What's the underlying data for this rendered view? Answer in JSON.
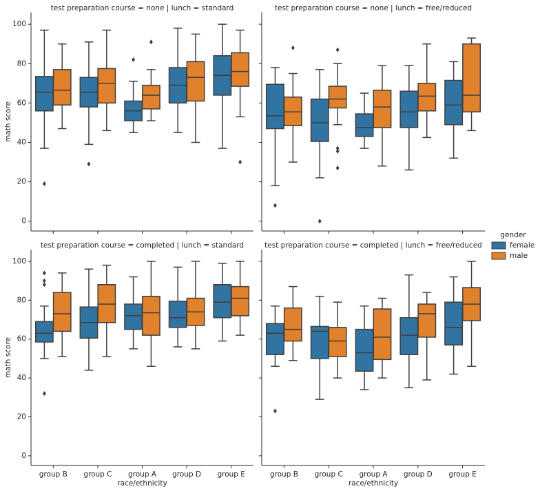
{
  "legend": {
    "title": "gender"
  },
  "chart_data": [
    {
      "type": "box",
      "title": "test preparation course = none | lunch = standard",
      "ylabel": "math score",
      "ylim": [
        -5,
        106
      ],
      "yticks": [
        0,
        20,
        40,
        60,
        80,
        100
      ],
      "series": [
        {
          "name": "female",
          "color": "#3274a1",
          "boxes": [
            {
              "whislo": 37,
              "q1": 56,
              "med": 65.5,
              "q3": 73.5,
              "whishi": 97,
              "fliers": [
                19
              ]
            },
            {
              "whislo": 39,
              "q1": 58,
              "med": 65.5,
              "q3": 73,
              "whishi": 91,
              "fliers": [
                29
              ]
            },
            {
              "whislo": 45,
              "q1": 51,
              "med": 56,
              "q3": 61,
              "whishi": 71,
              "fliers": [
                82
              ]
            },
            {
              "whislo": 45,
              "q1": 60,
              "med": 69,
              "q3": 78,
              "whishi": 98,
              "fliers": []
            },
            {
              "whislo": 37,
              "q1": 64,
              "med": 74,
              "q3": 84,
              "whishi": 100,
              "fliers": []
            }
          ]
        },
        {
          "name": "male",
          "color": "#e1812c",
          "boxes": [
            {
              "whislo": 47,
              "q1": 59,
              "med": 66.5,
              "q3": 77,
              "whishi": 90,
              "fliers": []
            },
            {
              "whislo": 46,
              "q1": 60,
              "med": 70,
              "q3": 77.5,
              "whishi": 97,
              "fliers": []
            },
            {
              "whislo": 51,
              "q1": 57,
              "med": 64,
              "q3": 69,
              "whishi": 77,
              "fliers": [
                91
              ]
            },
            {
              "whislo": 40,
              "q1": 61,
              "med": 73,
              "q3": 81,
              "whishi": 95,
              "fliers": []
            },
            {
              "whislo": 53,
              "q1": 68.5,
              "med": 76,
              "q3": 85.5,
              "whishi": 97,
              "fliers": [
                30
              ]
            }
          ]
        }
      ]
    },
    {
      "type": "box",
      "title": "test preparation course = none | lunch = free/reduced",
      "ylim": [
        -5,
        106
      ],
      "yticks": [
        0,
        20,
        40,
        60,
        80,
        100
      ],
      "series": [
        {
          "name": "female",
          "color": "#3274a1",
          "boxes": [
            {
              "whislo": 18,
              "q1": 47,
              "med": 53.5,
              "q3": 69.5,
              "whishi": 78,
              "fliers": [
                8
              ]
            },
            {
              "whislo": 22,
              "q1": 40.5,
              "med": 50,
              "q3": 62,
              "whishi": 77,
              "fliers": [
                0
              ]
            },
            {
              "whislo": 37,
              "q1": 43,
              "med": 47.5,
              "q3": 54.5,
              "whishi": 65,
              "fliers": []
            },
            {
              "whislo": 26,
              "q1": 47.5,
              "med": 55.5,
              "q3": 66,
              "whishi": 79,
              "fliers": []
            },
            {
              "whislo": 32,
              "q1": 49,
              "med": 59,
              "q3": 71.5,
              "whishi": 81,
              "fliers": []
            }
          ]
        },
        {
          "name": "male",
          "color": "#e1812c",
          "boxes": [
            {
              "whislo": 30,
              "q1": 48.5,
              "med": 55.5,
              "q3": 63,
              "whishi": 75,
              "fliers": [
                88
              ]
            },
            {
              "whislo": 49,
              "q1": 57.5,
              "med": 62,
              "q3": 68.5,
              "whishi": 80,
              "fliers": [
                87,
                37,
                35.5,
                27
              ]
            },
            {
              "whislo": 28,
              "q1": 47.5,
              "med": 58,
              "q3": 66.5,
              "whishi": 79,
              "fliers": []
            },
            {
              "whislo": 42.5,
              "q1": 56,
              "med": 63.5,
              "q3": 70,
              "whishi": 90,
              "fliers": []
            },
            {
              "whislo": 46,
              "q1": 55.5,
              "med": 64,
              "q3": 90,
              "whishi": 93,
              "fliers": []
            }
          ]
        }
      ]
    },
    {
      "type": "box",
      "title": "test preparation course = completed | lunch = standard",
      "ylabel": "math score",
      "xlabel": "race/ethnicity",
      "categories": [
        "group B",
        "group C",
        "group A",
        "group D",
        "group E"
      ],
      "ylim": [
        -5,
        106
      ],
      "yticks": [
        0,
        20,
        40,
        60,
        80,
        100
      ],
      "series": [
        {
          "name": "female",
          "color": "#3274a1",
          "boxes": [
            {
              "whislo": 50,
              "q1": 58.5,
              "med": 63,
              "q3": 69,
              "whishi": 77,
              "fliers": [
                94,
                90,
                88,
                32
              ]
            },
            {
              "whislo": 44,
              "q1": 60.5,
              "med": 68.5,
              "q3": 76.5,
              "whishi": 96,
              "fliers": []
            },
            {
              "whislo": 55,
              "q1": 65,
              "med": 72,
              "q3": 78,
              "whishi": 92,
              "fliers": []
            },
            {
              "whislo": 56,
              "q1": 66,
              "med": 71,
              "q3": 79.5,
              "whishi": 97,
              "fliers": []
            },
            {
              "whislo": 59,
              "q1": 71,
              "med": 79,
              "q3": 88,
              "whishi": 99,
              "fliers": []
            }
          ]
        },
        {
          "name": "male",
          "color": "#e1812c",
          "boxes": [
            {
              "whislo": 51,
              "q1": 64,
              "med": 73,
              "q3": 84,
              "whishi": 94,
              "fliers": []
            },
            {
              "whislo": 51,
              "q1": 68.5,
              "med": 78,
              "q3": 88,
              "whishi": 98,
              "fliers": []
            },
            {
              "whislo": 46,
              "q1": 62,
              "med": 73.5,
              "q3": 82,
              "whishi": 100,
              "fliers": []
            },
            {
              "whislo": 55,
              "q1": 67,
              "med": 74,
              "q3": 81,
              "whishi": 100,
              "fliers": []
            },
            {
              "whislo": 62,
              "q1": 72,
              "med": 81,
              "q3": 87,
              "whishi": 100,
              "fliers": []
            }
          ]
        }
      ]
    },
    {
      "type": "box",
      "title": "test preparation course = completed | lunch = free/reduced",
      "xlabel": "race/ethnicity",
      "categories": [
        "group B",
        "group C",
        "group A",
        "group D",
        "group E"
      ],
      "ylim": [
        -5,
        106
      ],
      "yticks": [
        0,
        20,
        40,
        60,
        80,
        100
      ],
      "series": [
        {
          "name": "female",
          "color": "#3274a1",
          "boxes": [
            {
              "whislo": 46,
              "q1": 52,
              "med": 63,
              "q3": 68,
              "whishi": 77,
              "fliers": [
                23
              ]
            },
            {
              "whislo": 29,
              "q1": 50,
              "med": 64,
              "q3": 66.5,
              "whishi": 82,
              "fliers": []
            },
            {
              "whislo": 34,
              "q1": 43.5,
              "med": 53,
              "q3": 65,
              "whishi": 77,
              "fliers": []
            },
            {
              "whislo": 35,
              "q1": 52,
              "med": 62,
              "q3": 71,
              "whishi": 93,
              "fliers": []
            },
            {
              "whislo": 42,
              "q1": 57,
              "med": 66,
              "q3": 79,
              "whishi": 92,
              "fliers": []
            }
          ]
        },
        {
          "name": "male",
          "color": "#e1812c",
          "boxes": [
            {
              "whislo": 49,
              "q1": 59,
              "med": 65,
              "q3": 76,
              "whishi": 87,
              "fliers": []
            },
            {
              "whislo": 40,
              "q1": 51,
              "med": 59,
              "q3": 66,
              "whishi": 79,
              "fliers": []
            },
            {
              "whislo": 40,
              "q1": 49.5,
              "med": 61,
              "q3": 75.5,
              "whishi": 81,
              "fliers": []
            },
            {
              "whislo": 39,
              "q1": 61,
              "med": 73,
              "q3": 78,
              "whishi": 84,
              "fliers": []
            },
            {
              "whislo": 46,
              "q1": 69.5,
              "med": 78,
              "q3": 86.5,
              "whishi": 100,
              "fliers": []
            }
          ]
        }
      ]
    }
  ]
}
